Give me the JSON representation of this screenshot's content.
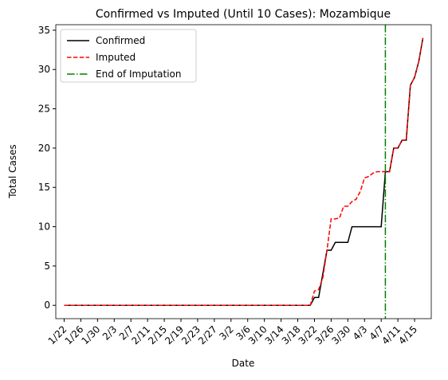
{
  "chart_data": {
    "type": "line",
    "title": "Confirmed vs Imputed (Until 10 Cases): Mozambique",
    "xlabel": "Date",
    "ylabel": "Total Cases",
    "categories": [
      "1/22",
      null,
      null,
      null,
      "1/26",
      null,
      null,
      null,
      "1/30",
      null,
      null,
      null,
      "2/3",
      null,
      null,
      null,
      "2/7",
      null,
      null,
      null,
      "2/11",
      null,
      null,
      null,
      "2/15",
      null,
      null,
      null,
      "2/19",
      null,
      null,
      null,
      "2/23",
      null,
      null,
      null,
      "2/27",
      null,
      null,
      null,
      "3/2",
      null,
      null,
      null,
      "3/6",
      null,
      null,
      null,
      "3/10",
      null,
      null,
      null,
      "3/14",
      null,
      null,
      null,
      "3/18",
      null,
      null,
      null,
      "3/22",
      null,
      null,
      null,
      "3/26",
      null,
      null,
      null,
      "3/30",
      null,
      null,
      null,
      "4/3",
      null,
      null,
      null,
      "4/7",
      null,
      null,
      null,
      "4/11",
      null,
      null,
      null,
      "4/15",
      null,
      null
    ],
    "series": [
      {
        "name": "Confirmed",
        "color": "#000000",
        "dash": "solid",
        "values": [
          0,
          0,
          0,
          0,
          0,
          0,
          0,
          0,
          0,
          0,
          0,
          0,
          0,
          0,
          0,
          0,
          0,
          0,
          0,
          0,
          0,
          0,
          0,
          0,
          0,
          0,
          0,
          0,
          0,
          0,
          0,
          0,
          0,
          0,
          0,
          0,
          0,
          0,
          0,
          0,
          0,
          0,
          0,
          0,
          0,
          0,
          0,
          0,
          0,
          0,
          0,
          0,
          0,
          0,
          0,
          0,
          0,
          0,
          0,
          0,
          1,
          1,
          4,
          7,
          7,
          8,
          8,
          8,
          8,
          10,
          10,
          10,
          10,
          10,
          10,
          10,
          10,
          17,
          17,
          20,
          20,
          21,
          21,
          28,
          29,
          31,
          34
        ]
      },
      {
        "name": "Imputed",
        "color": "#ff0000",
        "dash": "dashed",
        "values": [
          0,
          0,
          0,
          0,
          0,
          0,
          0,
          0,
          0,
          0,
          0,
          0,
          0,
          0,
          0,
          0,
          0,
          0,
          0,
          0,
          0,
          0,
          0,
          0,
          0,
          0,
          0,
          0,
          0,
          0,
          0,
          0,
          0,
          0,
          0,
          0,
          0,
          0,
          0,
          0,
          0,
          0,
          0,
          0,
          0,
          0,
          0,
          0,
          0,
          0,
          0,
          0,
          0,
          0,
          0,
          0,
          0,
          0,
          0,
          0,
          1.8,
          2,
          3.5,
          7,
          11,
          11,
          11.1,
          12.6,
          12.6,
          13.2,
          13.5,
          14.5,
          16.2,
          16.4,
          16.8,
          17,
          17,
          17,
          17,
          20,
          20,
          21,
          21,
          28,
          29,
          31,
          34
        ]
      }
    ],
    "vline": {
      "name": "End of Imputation",
      "color": "#008000",
      "x": 77
    },
    "xlim": [
      -2,
      88
    ],
    "ylim": [
      -1.7,
      35.7
    ],
    "yticks": [
      0,
      5,
      10,
      15,
      20,
      25,
      30,
      35
    ],
    "legend": "upper left"
  }
}
